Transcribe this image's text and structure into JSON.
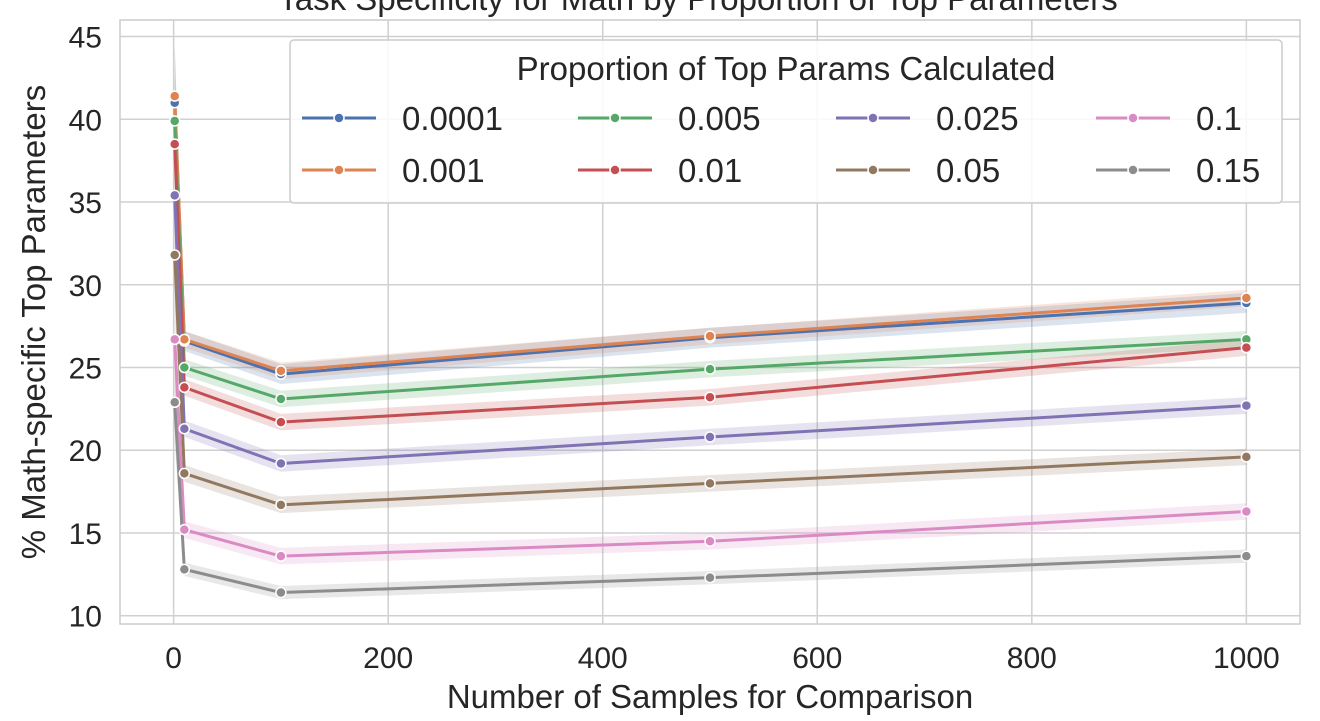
{
  "chart_data": {
    "type": "line",
    "title": "Task Specificity for Math by Proportion of Top Parameters",
    "xlabel": "Number of Samples for Comparison",
    "ylabel": "% Math-specific Top Parameters",
    "x": [
      1,
      10,
      100,
      500,
      1000
    ],
    "xlim": [
      -50,
      1050
    ],
    "ylim": [
      9.5,
      46
    ],
    "xticks": [
      0,
      200,
      400,
      600,
      800,
      1000
    ],
    "xtick_labels": [
      "0",
      "200",
      "400",
      "600",
      "800",
      "1000"
    ],
    "yticks": [
      10,
      15,
      20,
      25,
      30,
      35,
      40,
      45
    ],
    "ytick_labels": [
      "10",
      "15",
      "20",
      "25",
      "30",
      "35",
      "40",
      "45"
    ],
    "grid": true,
    "legend": {
      "title": "Proportion of Top Params Calculated",
      "position": "top-right",
      "columns": 4
    },
    "series": [
      {
        "name": "0.0001",
        "color": "#4c72b0",
        "values": [
          41.0,
          26.6,
          24.6,
          26.8,
          28.9
        ],
        "ci": 0.6
      },
      {
        "name": "0.001",
        "color": "#dd8452",
        "values": [
          41.4,
          26.7,
          24.8,
          26.9,
          29.2
        ],
        "ci": 0.5
      },
      {
        "name": "0.005",
        "color": "#55a868",
        "values": [
          39.9,
          25.0,
          23.1,
          24.9,
          26.7
        ],
        "ci": 0.5
      },
      {
        "name": "0.01",
        "color": "#c44e52",
        "values": [
          38.5,
          23.8,
          21.7,
          23.2,
          26.2
        ],
        "ci": 0.5
      },
      {
        "name": "0.025",
        "color": "#8172b3",
        "values": [
          35.4,
          21.3,
          19.2,
          20.8,
          22.7
        ],
        "ci": 0.5
      },
      {
        "name": "0.05",
        "color": "#937860",
        "values": [
          31.8,
          18.6,
          16.7,
          18.0,
          19.6
        ],
        "ci": 0.5
      },
      {
        "name": "0.1",
        "color": "#da8bc3",
        "values": [
          26.7,
          15.2,
          13.6,
          14.5,
          16.3
        ],
        "ci": 0.5
      },
      {
        "name": "0.15",
        "color": "#8c8c8c",
        "values": [
          22.9,
          12.8,
          11.4,
          12.3,
          13.6
        ],
        "ci": 0.4
      }
    ]
  }
}
